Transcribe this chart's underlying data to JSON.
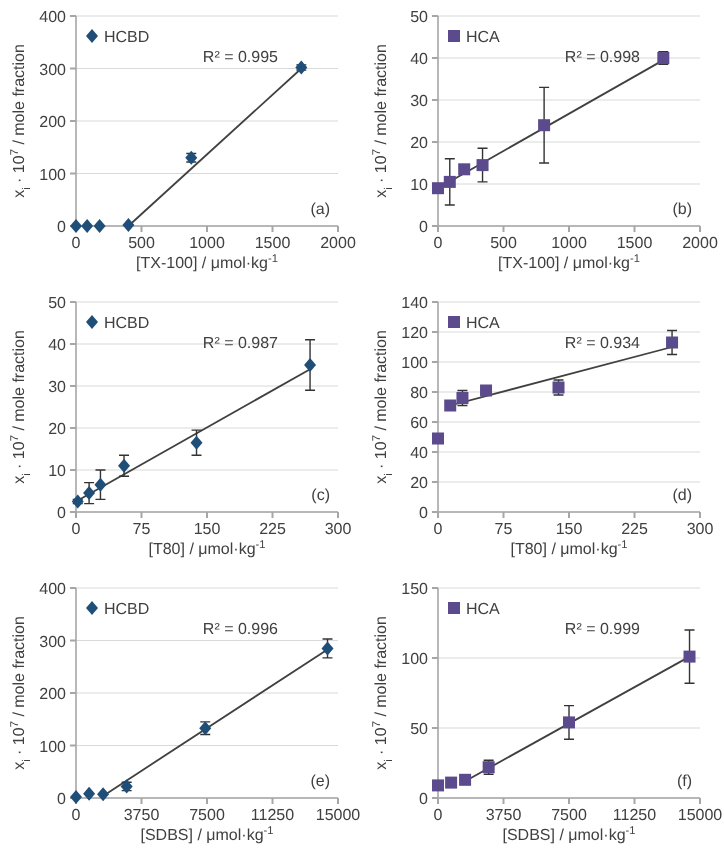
{
  "chart_data": [
    {
      "type": "scatter",
      "xlabel": "[TX-100] / μmol·kg$^{-1}$",
      "ylabel": "x$_{i}$ · 10$^{7}$ / mole fraction",
      "xlim": [
        0,
        2000
      ],
      "xticks": [
        0,
        500,
        1000,
        1500,
        2000
      ],
      "ylim": [
        0,
        400
      ],
      "yticks": [
        0,
        100,
        200,
        300,
        400
      ],
      "grid": "y",
      "legend": "top left",
      "annotations": [
        "R² = 0.995",
        "(a)"
      ],
      "series": [
        {
          "name": "HCBD",
          "color": "#1f4e79",
          "marker": "diamond",
          "x": [
            0,
            85,
            180,
            400,
            880,
            1720
          ],
          "values": [
            0,
            0,
            0,
            2,
            130,
            302
          ],
          "errors": [
            null,
            null,
            null,
            null,
            8,
            5
          ]
        },
        {
          "type": "line",
          "color": "#404040",
          "x": [
            400,
            1720
          ],
          "values": [
            0,
            300
          ]
        }
      ]
    },
    {
      "type": "scatter",
      "xlabel": "[TX-100] / μmol·kg$^{-1}$",
      "ylabel": "x$_{i}$ · 10$^{7}$ / mole fraction",
      "xlim": [
        0,
        2000
      ],
      "xticks": [
        0,
        500,
        1000,
        1500,
        2000
      ],
      "ylim": [
        0,
        50
      ],
      "yticks": [
        0,
        10,
        20,
        30,
        40,
        50
      ],
      "grid": "y",
      "legend": "top left",
      "annotations": [
        "R² = 0.998",
        "(b)"
      ],
      "series": [
        {
          "name": "HCA",
          "color": "#5b4a8c",
          "marker": "square",
          "x": [
            0,
            90,
            200,
            340,
            810,
            1720
          ],
          "values": [
            9,
            10.5,
            13.5,
            14.5,
            24,
            40
          ],
          "errors": [
            null,
            5.5,
            null,
            4,
            9,
            1.5
          ]
        },
        {
          "type": "line",
          "color": "#404040",
          "x": [
            0,
            1720
          ],
          "values": [
            9,
            39.5
          ]
        }
      ]
    },
    {
      "type": "scatter",
      "xlabel": "[T80] / μmol·kg$^{-1}$",
      "ylabel": "x$_{i}$ · 10$^{7}$ / mole fraction",
      "xlim": [
        0,
        300
      ],
      "xticks": [
        0,
        75,
        150,
        225,
        300
      ],
      "ylim": [
        0,
        50
      ],
      "yticks": [
        0,
        10,
        20,
        30,
        40,
        50
      ],
      "grid": "y",
      "legend": "top left",
      "annotations": [
        "R² = 0.987",
        "(c)"
      ],
      "series": [
        {
          "name": "HCBD",
          "color": "#1f4e79",
          "marker": "diamond",
          "x": [
            2,
            15,
            28,
            55,
            138,
            268
          ],
          "values": [
            2.5,
            4.5,
            6.5,
            11,
            16.5,
            35
          ],
          "errors": [
            0.5,
            2.5,
            3.5,
            2.5,
            3,
            6
          ]
        },
        {
          "type": "line",
          "color": "#404040",
          "x": [
            0,
            268
          ],
          "values": [
            2.5,
            34
          ]
        }
      ]
    },
    {
      "type": "scatter",
      "xlabel": "[T80] / μmol·kg$^{-1}$",
      "ylabel": "x$_{i}$ · 10$^{7}$ / mole fraction",
      "xlim": [
        0,
        300
      ],
      "xticks": [
        0,
        75,
        150,
        225,
        300
      ],
      "ylim": [
        0,
        140
      ],
      "yticks": [
        0,
        20,
        40,
        60,
        80,
        100,
        120,
        140
      ],
      "grid": "y",
      "legend": "top left",
      "annotations": [
        "R² = 0.934",
        "(d)"
      ],
      "series": [
        {
          "name": "HCA",
          "color": "#5b4a8c",
          "marker": "square",
          "x": [
            0,
            14,
            28,
            55,
            138,
            268
          ],
          "values": [
            49,
            71,
            76,
            81,
            83,
            113
          ],
          "errors": [
            null,
            null,
            5,
            null,
            5,
            8
          ]
        },
        {
          "type": "line",
          "color": "#404040",
          "x": [
            14,
            268
          ],
          "values": [
            71,
            110
          ]
        }
      ]
    },
    {
      "type": "scatter",
      "xlabel": "[SDBS] / μmol·kg$^{-1}$",
      "ylabel": "x$_{i}$ · 10$^{7}$ / mole fraction",
      "xlim": [
        0,
        15000
      ],
      "xticks": [
        0,
        3750,
        7500,
        11250,
        15000
      ],
      "ylim": [
        0,
        400
      ],
      "yticks": [
        0,
        100,
        200,
        300,
        400
      ],
      "grid": "y",
      "legend": "top left",
      "annotations": [
        "R² = 0.996",
        "(e)"
      ],
      "series": [
        {
          "name": "HCBD",
          "color": "#1f4e79",
          "marker": "diamond",
          "x": [
            0,
            750,
            1550,
            2900,
            7400,
            14400
          ],
          "values": [
            2,
            8,
            7,
            22,
            133,
            285
          ],
          "errors": [
            null,
            null,
            null,
            8,
            12,
            18
          ]
        },
        {
          "type": "line",
          "color": "#404040",
          "x": [
            1550,
            14400
          ],
          "values": [
            4,
            283
          ]
        }
      ]
    },
    {
      "type": "scatter",
      "xlabel": "[SDBS] / μmol·kg$^{-1}$",
      "ylabel": "x$_{i}$ · 10$^{7}$ / mole fraction",
      "xlim": [
        0,
        15000
      ],
      "xticks": [
        0,
        3750,
        7500,
        11250,
        15000
      ],
      "ylim": [
        0,
        150
      ],
      "yticks": [
        0,
        50,
        100,
        150
      ],
      "grid": "y",
      "legend": "top left",
      "annotations": [
        "R² = 0.999",
        "(f)"
      ],
      "series": [
        {
          "name": "HCA",
          "color": "#5b4a8c",
          "marker": "square",
          "x": [
            0,
            750,
            1550,
            2900,
            7500,
            14400
          ],
          "values": [
            9,
            11,
            13,
            22,
            54,
            101
          ],
          "errors": [
            null,
            null,
            null,
            5,
            12,
            19
          ]
        },
        {
          "type": "line",
          "color": "#404040",
          "x": [
            1550,
            14400
          ],
          "values": [
            12,
            101
          ]
        }
      ]
    }
  ]
}
